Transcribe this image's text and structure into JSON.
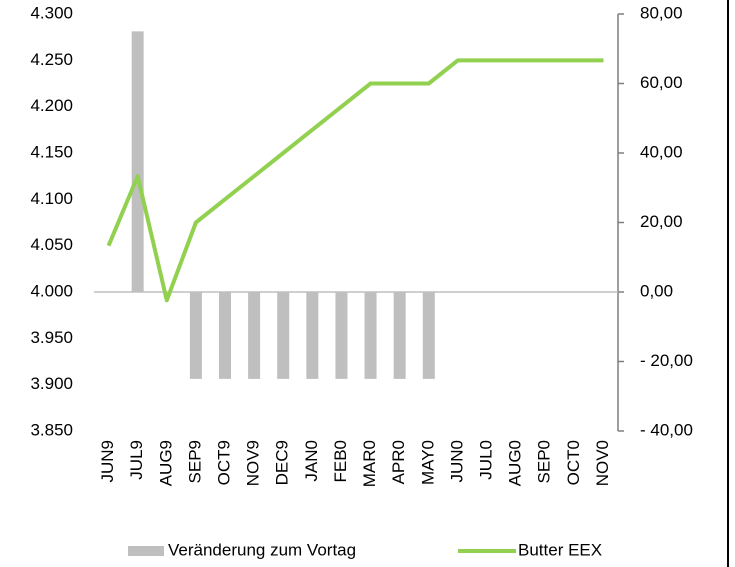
{
  "chart_data": {
    "type": "bar_line",
    "categories": [
      "JUN9",
      "JUL9",
      "AUG9",
      "SEP9",
      "OCT9",
      "NOV9",
      "DEC9",
      "JAN0",
      "FEB0",
      "MAR0",
      "APR0",
      "MAY0",
      "JUN0",
      "JUL0",
      "AUG0",
      "SEP0",
      "OCT0",
      "NOV0"
    ],
    "series": [
      {
        "name": "Veränderung zum Vortag",
        "type": "bar",
        "axis": "y2",
        "color": "#bfbfbf",
        "values": [
          null,
          75,
          null,
          -25,
          -25,
          -25,
          -25,
          -25,
          -25,
          -25,
          -25,
          -25,
          null,
          null,
          null,
          null,
          null,
          null
        ]
      },
      {
        "name": "Butter EEX",
        "type": "line",
        "axis": "y",
        "color": "#92d050",
        "values": [
          4.05,
          4.125,
          3.991,
          4.075,
          4.1,
          4.125,
          4.15,
          4.175,
          4.2,
          4.225,
          4.225,
          4.225,
          4.25,
          4.25,
          4.25,
          4.25,
          4.25,
          4.25
        ]
      }
    ],
    "ylim": [
      3.85,
      4.3
    ],
    "yticks": [
      {
        "value": 3.85,
        "label": "3.850"
      },
      {
        "value": 3.9,
        "label": "3.900"
      },
      {
        "value": 3.95,
        "label": "3.950"
      },
      {
        "value": 4.0,
        "label": "4.000"
      },
      {
        "value": 4.05,
        "label": "4.050"
      },
      {
        "value": 4.1,
        "label": "4.100"
      },
      {
        "value": 4.15,
        "label": "4.150"
      },
      {
        "value": 4.2,
        "label": "4.200"
      },
      {
        "value": 4.25,
        "label": "4.250"
      },
      {
        "value": 4.3,
        "label": "4.300"
      }
    ],
    "y2lim": [
      -40,
      80
    ],
    "y2ticks": [
      {
        "value": -40,
        "label": "- 40,00"
      },
      {
        "value": -20,
        "label": "- 20,00"
      },
      {
        "value": 0,
        "label": "0,00"
      },
      {
        "value": 20,
        "label": "20,00"
      },
      {
        "value": 40,
        "label": "40,00"
      },
      {
        "value": 60,
        "label": "60,00"
      },
      {
        "value": 80,
        "label": "80,00"
      }
    ],
    "y2_label_color": "#008000",
    "y2_negative_label_color": "#ff0000",
    "legend": "bottom"
  }
}
